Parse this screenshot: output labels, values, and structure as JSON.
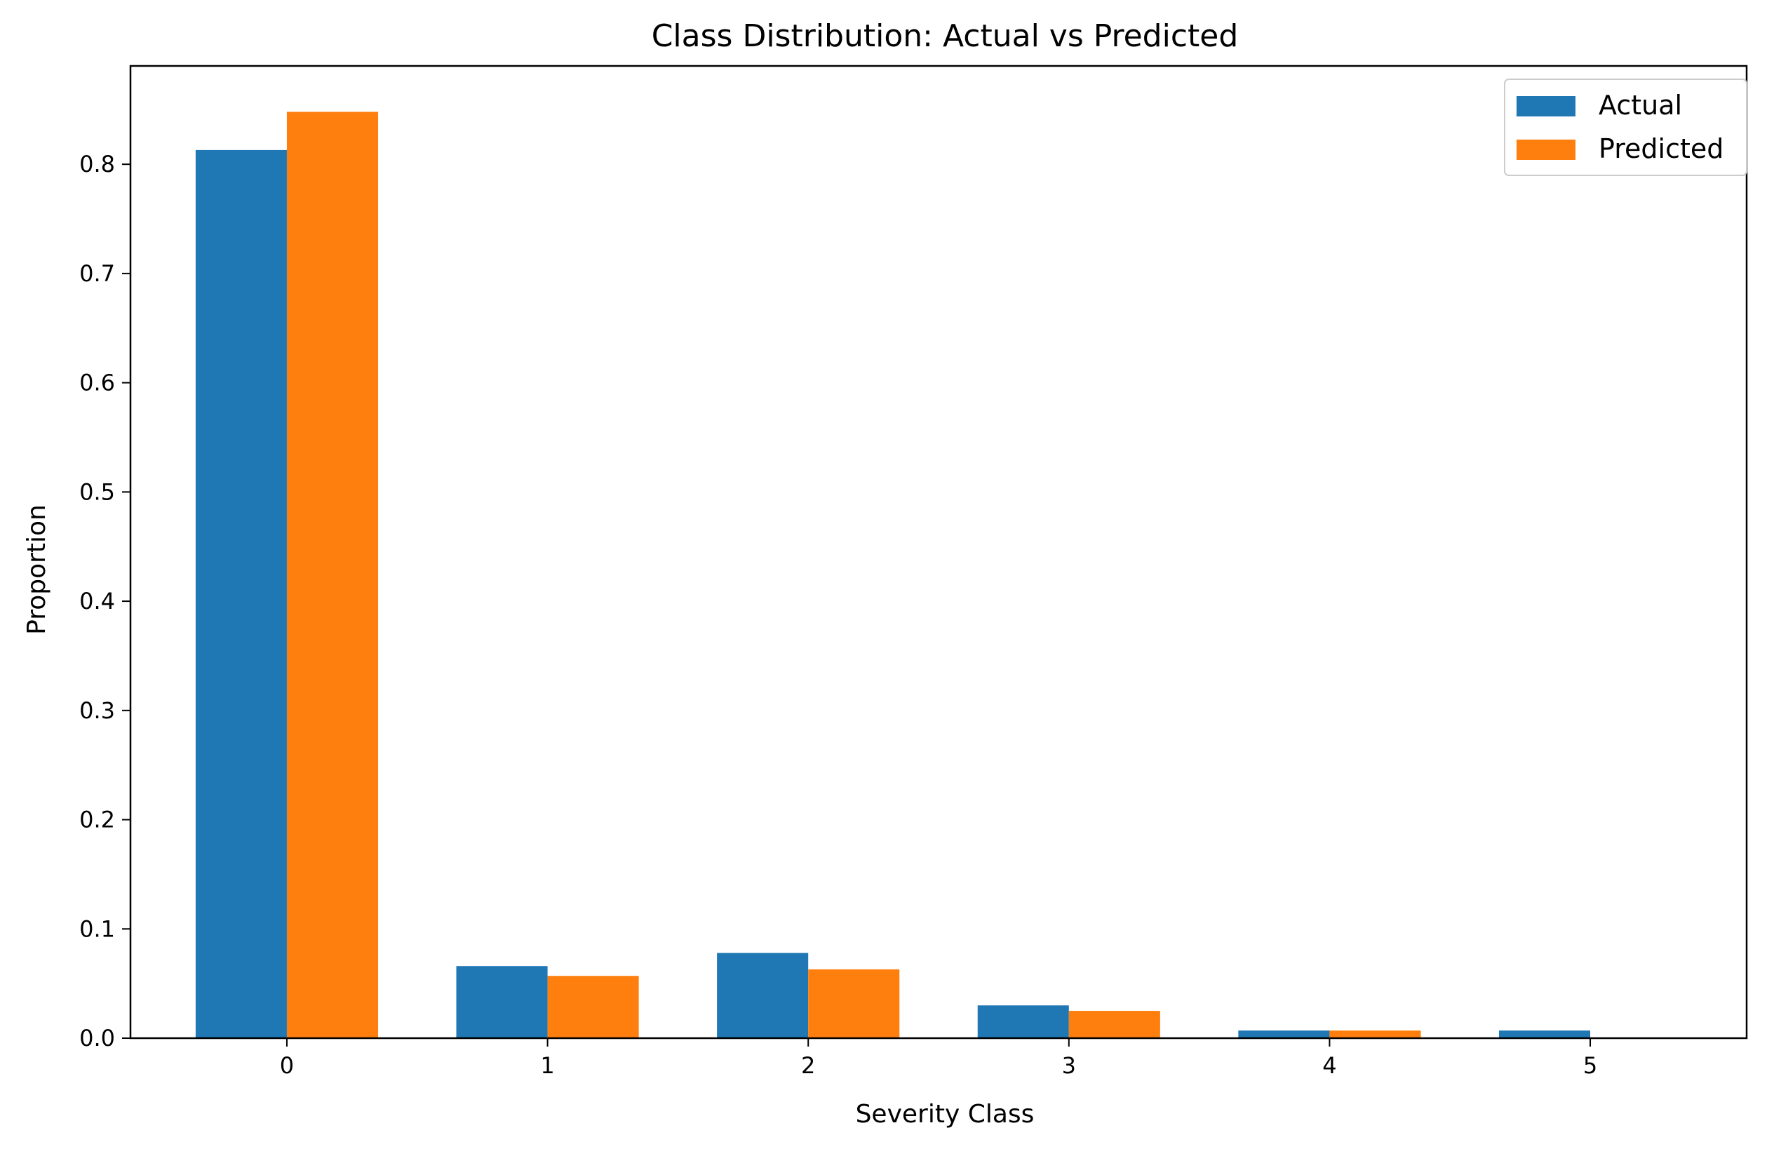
{
  "chart_data": {
    "type": "bar",
    "title": "Class Distribution: Actual vs Predicted",
    "xlabel": "Severity Class",
    "ylabel": "Proportion",
    "categories": [
      "0",
      "1",
      "2",
      "3",
      "4",
      "5"
    ],
    "series": [
      {
        "name": "Actual",
        "color": "#1f77b4",
        "values": [
          0.813,
          0.066,
          0.078,
          0.03,
          0.007,
          0.007
        ]
      },
      {
        "name": "Predicted",
        "color": "#ff7f0e",
        "values": [
          0.848,
          0.057,
          0.063,
          0.025,
          0.007,
          0.0
        ]
      }
    ],
    "ylim": [
      0,
      0.89
    ],
    "yticks": [
      0.0,
      0.1,
      0.2,
      0.3,
      0.4,
      0.5,
      0.6,
      0.7,
      0.8
    ],
    "ytick_labels": [
      "0.0",
      "0.1",
      "0.2",
      "0.3",
      "0.4",
      "0.5",
      "0.6",
      "0.7",
      "0.8"
    ],
    "grid": false,
    "legend_position": "top-right"
  }
}
